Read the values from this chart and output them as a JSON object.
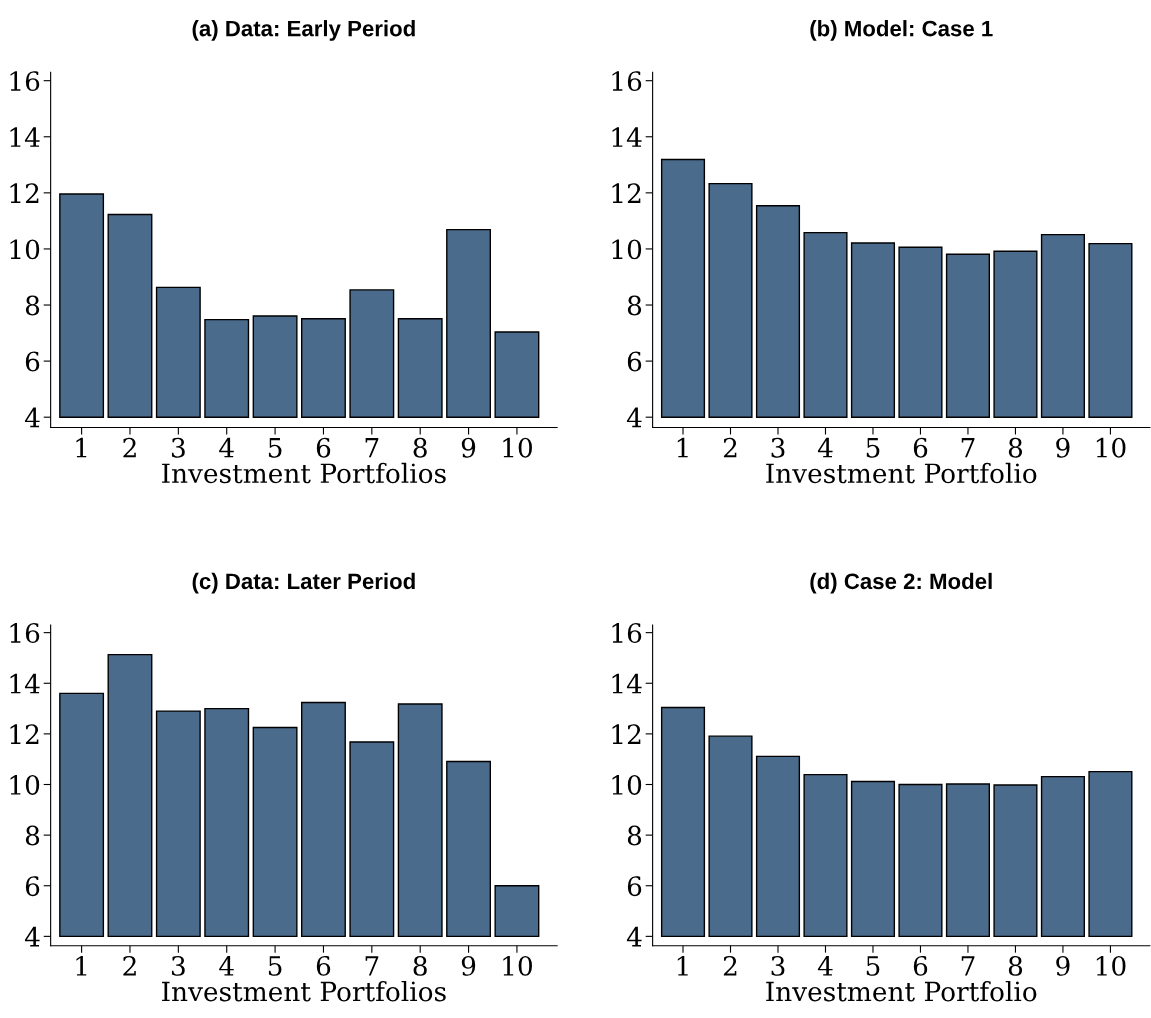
{
  "chart_data": [
    {
      "type": "bar",
      "title": "(a) Data: Early Period",
      "xlabel": "Investment Portfolios",
      "categories": [
        "1",
        "2",
        "3",
        "4",
        "5",
        "6",
        "7",
        "8",
        "9",
        "10"
      ],
      "base": [
        4,
        4,
        4,
        4,
        4,
        4,
        4,
        4,
        4,
        4
      ],
      "values": [
        7.96,
        7.23,
        4.63,
        3.48,
        3.61,
        3.51,
        4.54,
        3.51,
        6.69,
        3.04
      ],
      "color": "#4a6b8b",
      "ylim": [
        3.63,
        16.3
      ],
      "yticks": [
        4,
        6,
        8,
        10,
        12,
        14,
        16
      ],
      "grid": false
    },
    {
      "type": "bar",
      "title": "(b) Model: Case 1",
      "xlabel": "Investment Portfolio",
      "categories": [
        "1",
        "2",
        "3",
        "4",
        "5",
        "6",
        "7",
        "8",
        "9",
        "10"
      ],
      "base": [
        4,
        4,
        4,
        4,
        4,
        4,
        4,
        4,
        4,
        4
      ],
      "values": [
        9.19,
        8.33,
        7.54,
        6.58,
        6.21,
        6.06,
        5.81,
        5.92,
        6.51,
        6.19
      ],
      "color": "#4a6b8b",
      "ylim": [
        3.63,
        16.3
      ],
      "yticks": [
        4,
        6,
        8,
        10,
        12,
        14,
        16
      ],
      "grid": false
    },
    {
      "type": "bar",
      "title": "(c) Data: Later Period",
      "xlabel": "Investment Portfolios",
      "categories": [
        "1",
        "2",
        "3",
        "4",
        "5",
        "6",
        "7",
        "8",
        "9",
        "10"
      ],
      "base": [
        4,
        4,
        4,
        4,
        4,
        4,
        4,
        4,
        4,
        4
      ],
      "values": [
        9.6,
        11.13,
        8.9,
        9.0,
        8.25,
        9.24,
        7.68,
        9.18,
        6.91,
        2.0
      ],
      "color": "#4a6b8b",
      "ylim": [
        3.63,
        16.3
      ],
      "yticks": [
        4,
        6,
        8,
        10,
        12,
        14,
        16
      ],
      "grid": false
    },
    {
      "type": "bar",
      "title": "(d) Case 2: Model",
      "xlabel": "Investment Portfolio",
      "categories": [
        "1",
        "2",
        "3",
        "4",
        "5",
        "6",
        "7",
        "8",
        "9",
        "10"
      ],
      "base": [
        4,
        4,
        4,
        4,
        4,
        4,
        4,
        4,
        4,
        4
      ],
      "values": [
        9.04,
        7.91,
        7.11,
        6.39,
        6.12,
        6.0,
        6.02,
        5.98,
        6.31,
        6.51
      ],
      "color": "#4a6b8b",
      "ylim": [
        3.63,
        16.3
      ],
      "yticks": [
        4,
        6,
        8,
        10,
        12,
        14,
        16
      ],
      "grid": false
    }
  ]
}
